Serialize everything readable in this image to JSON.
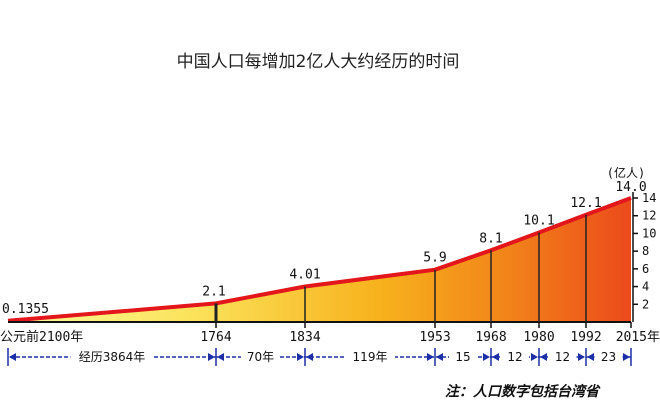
{
  "chart_data": {
    "type": "area",
    "title": "中国人口每增加2亿人大约经历的时间",
    "yunit": "(亿人)",
    "ylim": [
      0,
      14.5
    ],
    "yticks": [
      "2",
      "4",
      "6",
      "8",
      "10",
      "12",
      "14"
    ],
    "points": [
      {
        "year": -2100,
        "label": "公元前2100年",
        "value": 0.1355,
        "value_label": "0.1355"
      },
      {
        "year": 1764,
        "label": "1764",
        "value": 2.1,
        "value_label": "2.1"
      },
      {
        "year": 1834,
        "label": "1834",
        "value": 4.01,
        "value_label": "4.01"
      },
      {
        "year": 1953,
        "label": "1953",
        "value": 5.9,
        "value_label": "5.9"
      },
      {
        "year": 1968,
        "label": "1968",
        "value": 8.1,
        "value_label": "8.1"
      },
      {
        "year": 1980,
        "label": "1980",
        "value": 10.1,
        "value_label": "10.1"
      },
      {
        "year": 1992,
        "label": "1992",
        "value": 12.1,
        "value_label": "12.1"
      },
      {
        "year": 2015,
        "label": "2015年",
        "value": 14.0,
        "value_label": "14.0"
      }
    ],
    "durations": [
      "经历3864年",
      "70年",
      "119年",
      "15",
      "12",
      "12",
      "23"
    ]
  },
  "note": "注：人口数字包括台湾省"
}
